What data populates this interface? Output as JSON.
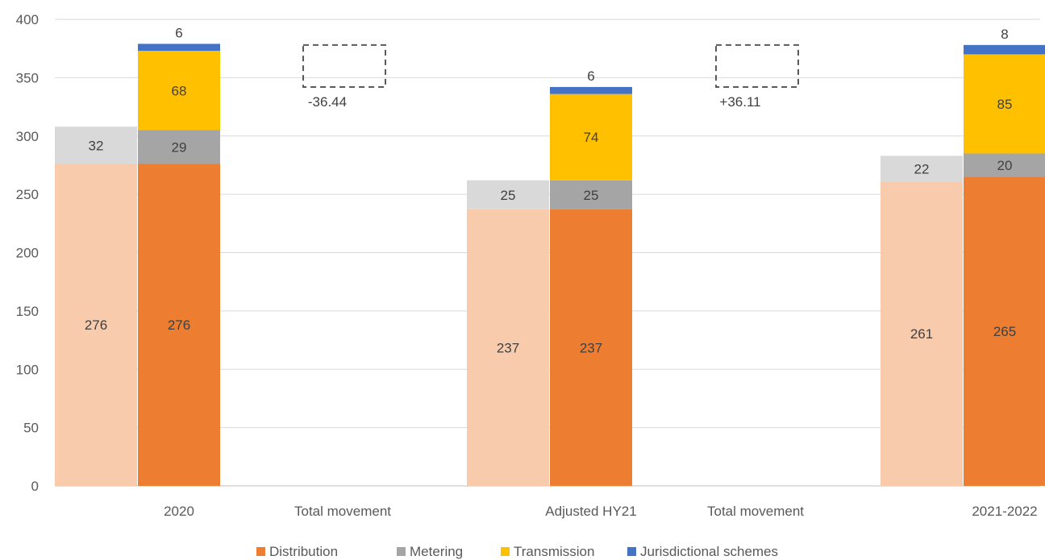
{
  "chart_data": {
    "type": "bar",
    "subtype": "stacked-waterfall-with-shadow-comparison",
    "title": "",
    "xlabel": "",
    "ylabel": "",
    "ylim": [
      0,
      400
    ],
    "yticks": [
      0,
      50,
      100,
      150,
      200,
      250,
      300,
      350,
      400
    ],
    "grid": true,
    "legend_position": "bottom",
    "categories": [
      "2020",
      "Total movement",
      "Adjusted HY21",
      "Total movement",
      "2021-2022"
    ],
    "series": [
      {
        "name": "Distribution",
        "color": "#ED7D31",
        "values": [
          276,
          null,
          237,
          null,
          265
        ]
      },
      {
        "name": "Metering",
        "color": "#A5A5A5",
        "values": [
          29,
          null,
          25,
          null,
          20
        ]
      },
      {
        "name": "Transmission",
        "color": "#FFC000",
        "values": [
          68,
          null,
          74,
          null,
          85
        ]
      },
      {
        "name": "Jurisdictional schemes",
        "color": "#4472C4",
        "values": [
          6,
          null,
          6,
          null,
          8
        ]
      }
    ],
    "shadow_series": [
      {
        "role": "distribution-shadow",
        "color": "#F8CBAD",
        "values": [
          276,
          null,
          237,
          null,
          261
        ]
      },
      {
        "role": "metering-shadow",
        "color": "#D9D9D9",
        "values": [
          32,
          null,
          25,
          null,
          22
        ]
      }
    ],
    "movements": [
      {
        "category_index": 1,
        "label": "-36.44",
        "from": 342,
        "to": 378
      },
      {
        "category_index": 3,
        "label": "+36.11",
        "from": 342,
        "to": 378
      }
    ]
  }
}
